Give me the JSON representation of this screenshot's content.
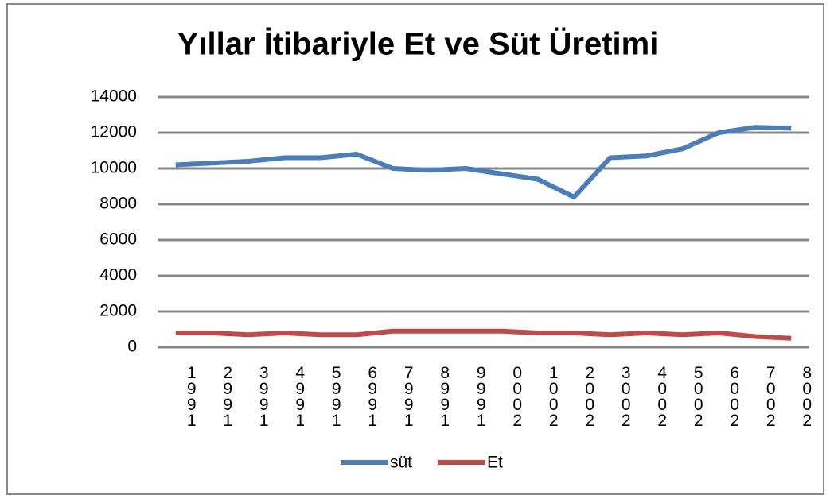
{
  "chart_data": {
    "type": "line",
    "title": "Yıllar İtibariyle Et ve Süt Üretimi",
    "categories": [
      "1991",
      "1992",
      "1993",
      "1994",
      "1995",
      "1996",
      "1997",
      "1998",
      "1999",
      "2000",
      "2001",
      "2002",
      "2003",
      "2004",
      "2005",
      "2006",
      "2007",
      "2008"
    ],
    "series": [
      {
        "name": "süt",
        "color": "#4a7ebb",
        "values": [
          10200,
          10300,
          10400,
          10600,
          10600,
          10800,
          10000,
          9900,
          10000,
          9700,
          9400,
          8400,
          10600,
          10700,
          11100,
          12000,
          12300,
          12250
        ]
      },
      {
        "name": "Et",
        "color": "#be4b48",
        "values": [
          800,
          800,
          700,
          800,
          700,
          700,
          900,
          900,
          900,
          900,
          800,
          800,
          700,
          800,
          700,
          800,
          600,
          500
        ]
      }
    ],
    "ylim": [
      0,
      14000
    ],
    "yticks": [
      0,
      2000,
      4000,
      6000,
      8000,
      10000,
      12000,
      14000
    ],
    "grid": true,
    "legend": "bottom"
  }
}
